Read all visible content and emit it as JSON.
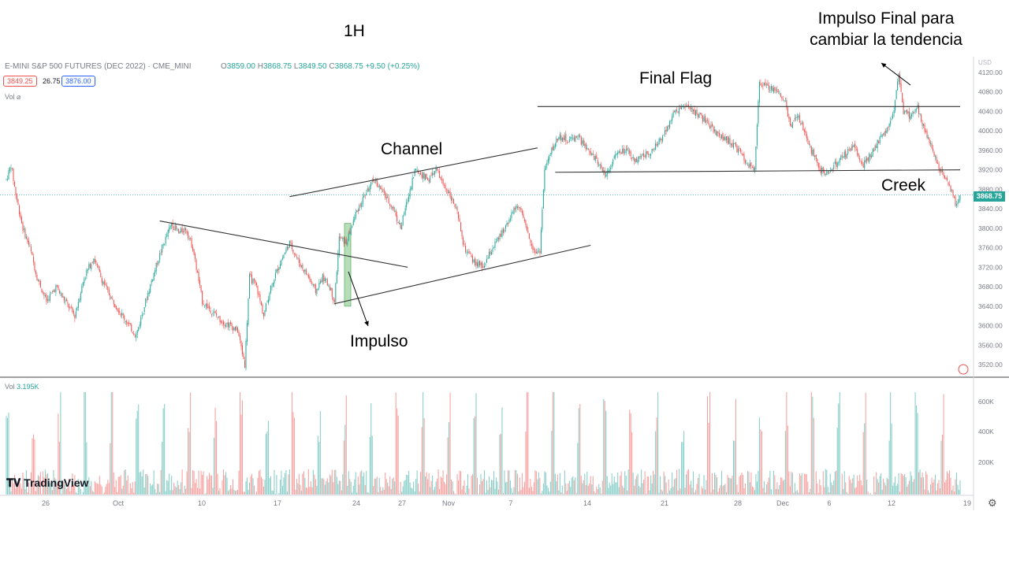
{
  "header": {
    "symbol": "E-MINI S&P 500 FUTURES (DEC 2022) · CME_MINI",
    "ohlc_prefix_o": "O",
    "ohlc_o": "3859.00",
    "ohlc_prefix_h": "H",
    "ohlc_h": "3868.75",
    "ohlc_prefix_l": "L",
    "ohlc_l": "3849.50",
    "ohlc_prefix_c": "C",
    "ohlc_c": "3868.75",
    "ohlc_change": "+9.50 (+0.25%)",
    "bid": "3849.25",
    "spread": "26.75",
    "ask": "3876.00",
    "vol_label": "Vol"
  },
  "volume_panel": {
    "label": "Vol",
    "value": "3.195K"
  },
  "currency": "USD",
  "last_price": "3868.75",
  "branding": "TradingView",
  "annotations": {
    "timeframe": "1H",
    "channel": "Channel",
    "final_flag": "Final Flag",
    "impulso": "Impulso",
    "creek": "Creek",
    "impulso_final_1": "Impulso Final para",
    "impulso_final_2": "cambiar la tendencia"
  },
  "colors": {
    "up": "#26a69a",
    "down": "#ef5350",
    "grid": "#e0e3eb",
    "impulse_box": "#a5d6a7"
  },
  "chart_data": {
    "type": "candlestick",
    "y_axis_ticks": [
      3520,
      3560,
      3600,
      3640,
      3680,
      3720,
      3760,
      3800,
      3840,
      3880,
      3920,
      3960,
      4000,
      4040,
      4080,
      4120
    ],
    "y_axis_labels": [
      "3520.00",
      "3560.00",
      "3600.00",
      "3640.00",
      "3680.00",
      "3720.00",
      "3760.00",
      "3800.00",
      "3840.00",
      "3880.00",
      "3920.00",
      "3960.00",
      "4000.00",
      "4040.00",
      "4080.00",
      "4120.00"
    ],
    "ylim": [
      3510,
      4135
    ],
    "x_axis_labels": [
      "26",
      "Oct",
      "10",
      "17",
      "24",
      "27",
      "Nov",
      "7",
      "14",
      "21",
      "28",
      "Dec",
      "6",
      "12",
      "19"
    ],
    "volume_ticks": [
      "600K",
      "400K",
      "200K"
    ],
    "price_path": [
      [
        0,
        3900
      ],
      [
        4,
        3930
      ],
      [
        8,
        3870
      ],
      [
        14,
        3800
      ],
      [
        20,
        3760
      ],
      [
        26,
        3700
      ],
      [
        34,
        3650
      ],
      [
        42,
        3680
      ],
      [
        50,
        3650
      ],
      [
        58,
        3620
      ],
      [
        66,
        3700
      ],
      [
        74,
        3740
      ],
      [
        80,
        3700
      ],
      [
        88,
        3660
      ],
      [
        96,
        3630
      ],
      [
        104,
        3600
      ],
      [
        110,
        3580
      ],
      [
        118,
        3650
      ],
      [
        124,
        3700
      ],
      [
        132,
        3760
      ],
      [
        140,
        3810
      ],
      [
        146,
        3790
      ],
      [
        152,
        3800
      ],
      [
        158,
        3760
      ],
      [
        166,
        3650
      ],
      [
        174,
        3630
      ],
      [
        182,
        3610
      ],
      [
        190,
        3600
      ],
      [
        196,
        3590
      ],
      [
        202,
        3520
      ],
      [
        206,
        3700
      ],
      [
        212,
        3680
      ],
      [
        218,
        3620
      ],
      [
        224,
        3680
      ],
      [
        232,
        3730
      ],
      [
        240,
        3770
      ],
      [
        248,
        3730
      ],
      [
        256,
        3700
      ],
      [
        262,
        3670
      ],
      [
        268,
        3700
      ],
      [
        274,
        3680
      ],
      [
        278,
        3650
      ],
      [
        282,
        3780
      ],
      [
        288,
        3770
      ],
      [
        296,
        3830
      ],
      [
        304,
        3870
      ],
      [
        312,
        3900
      ],
      [
        320,
        3870
      ],
      [
        328,
        3840
      ],
      [
        334,
        3800
      ],
      [
        340,
        3860
      ],
      [
        346,
        3920
      ],
      [
        352,
        3910
      ],
      [
        358,
        3900
      ],
      [
        364,
        3920
      ],
      [
        370,
        3890
      ],
      [
        376,
        3870
      ],
      [
        382,
        3830
      ],
      [
        388,
        3760
      ],
      [
        396,
        3730
      ],
      [
        404,
        3720
      ],
      [
        412,
        3760
      ],
      [
        420,
        3790
      ],
      [
        428,
        3830
      ],
      [
        434,
        3850
      ],
      [
        440,
        3800
      ],
      [
        448,
        3750
      ],
      [
        452,
        3755
      ],
      [
        456,
        3920
      ],
      [
        462,
        3960
      ],
      [
        468,
        3990
      ],
      [
        476,
        3980
      ],
      [
        484,
        3990
      ],
      [
        492,
        3960
      ],
      [
        500,
        3940
      ],
      [
        508,
        3910
      ],
      [
        516,
        3950
      ],
      [
        524,
        3960
      ],
      [
        532,
        3940
      ],
      [
        540,
        3950
      ],
      [
        548,
        3960
      ],
      [
        556,
        3990
      ],
      [
        564,
        4030
      ],
      [
        572,
        4050
      ],
      [
        580,
        4045
      ],
      [
        588,
        4030
      ],
      [
        596,
        4010
      ],
      [
        604,
        3990
      ],
      [
        612,
        3980
      ],
      [
        620,
        3960
      ],
      [
        628,
        3930
      ],
      [
        634,
        3920
      ],
      [
        638,
        4100
      ],
      [
        646,
        4090
      ],
      [
        654,
        4080
      ],
      [
        660,
        4060
      ],
      [
        664,
        4010
      ],
      [
        670,
        4030
      ],
      [
        676,
        4000
      ],
      [
        682,
        3960
      ],
      [
        690,
        3920
      ],
      [
        696,
        3910
      ],
      [
        702,
        3930
      ],
      [
        710,
        3950
      ],
      [
        718,
        3970
      ],
      [
        726,
        3930
      ],
      [
        734,
        3960
      ],
      [
        742,
        3990
      ],
      [
        748,
        4010
      ],
      [
        752,
        4040
      ],
      [
        756,
        4120
      ],
      [
        760,
        4040
      ],
      [
        766,
        4030
      ],
      [
        772,
        4050
      ],
      [
        778,
        4000
      ],
      [
        784,
        3970
      ],
      [
        790,
        3920
      ],
      [
        796,
        3900
      ],
      [
        800,
        3880
      ],
      [
        804,
        3850
      ],
      [
        808,
        3868.75
      ]
    ],
    "lines": [
      {
        "name": "downtrend",
        "from": [
          130,
          3815
        ],
        "to": [
          340,
          3720
        ]
      },
      {
        "name": "channel-top",
        "from": [
          240,
          3865
        ],
        "to": [
          450,
          3965
        ]
      },
      {
        "name": "channel-bottom",
        "from": [
          278,
          3645
        ],
        "to": [
          495,
          3765
        ]
      },
      {
        "name": "final-flag-top",
        "from": [
          450,
          4050
        ],
        "to": [
          808,
          4050
        ]
      },
      {
        "name": "final-flag-bottom",
        "from": [
          465,
          3915
        ],
        "to": [
          808,
          3920
        ]
      }
    ]
  }
}
